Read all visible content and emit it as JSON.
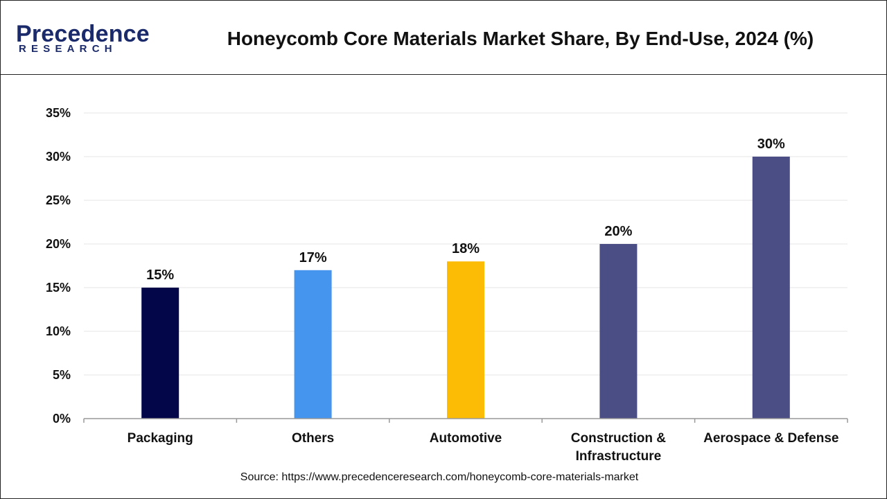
{
  "header": {
    "logo_name": "Precedence",
    "logo_sub": "RESEARCH",
    "title": "Honeycomb Core Materials Market Share, By End-Use, 2024 (%)"
  },
  "source": "Source: https://www.precedenceresearch.com/honeycomb-core-materials-market",
  "chart_data": {
    "type": "bar",
    "title": "Honeycomb Core Materials Market Share, By End-Use, 2024 (%)",
    "categories": [
      "Packaging",
      "Others",
      "Automotive",
      "Construction & Infrastructure",
      "Aerospace & Defense"
    ],
    "category_lines": [
      [
        "Packaging"
      ],
      [
        "Others"
      ],
      [
        "Automotive"
      ],
      [
        "Construction &",
        "Infrastructure"
      ],
      [
        "Aerospace & Defense"
      ]
    ],
    "values": [
      15,
      17,
      18,
      20,
      30
    ],
    "data_labels": [
      "15%",
      "17%",
      "18%",
      "20%",
      "30%"
    ],
    "colors": [
      "#03074a",
      "#4594ee",
      "#fcbb05",
      "#4b4e85",
      "#4b4e85"
    ],
    "ylim": [
      0,
      35
    ],
    "yticks": [
      0,
      5,
      10,
      15,
      20,
      25,
      30,
      35
    ],
    "ytick_labels": [
      "0%",
      "5%",
      "10%",
      "15%",
      "20%",
      "25%",
      "30%",
      "35%"
    ],
    "xlabel": "",
    "ylabel": "",
    "grid": true,
    "legend": "none"
  }
}
